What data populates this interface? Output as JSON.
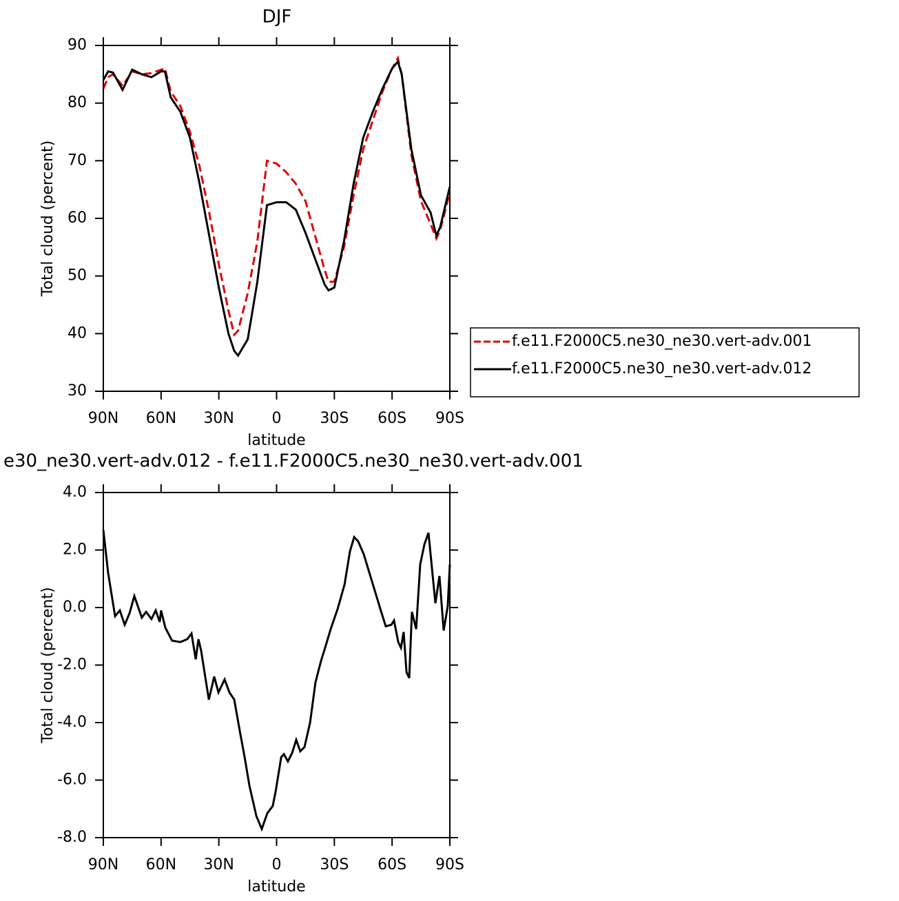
{
  "chart_data": [
    {
      "type": "line",
      "title": "DJF",
      "ylabel": "Total cloud (percent)",
      "xlabel": "latitude",
      "xlim": [
        90,
        -90
      ],
      "xticks": [
        {
          "value": 90,
          "label": "90N"
        },
        {
          "value": 60,
          "label": "60N"
        },
        {
          "value": 30,
          "label": "30N"
        },
        0,
        {
          "value": -30,
          "label": "30S"
        },
        {
          "value": -60,
          "label": "60S"
        },
        {
          "value": -90,
          "label": "90S"
        }
      ],
      "ylim": [
        30,
        90
      ],
      "yticks": [
        30,
        40,
        50,
        60,
        70,
        80,
        90
      ],
      "legend": "right",
      "x": [
        90,
        87.5,
        85,
        80,
        75,
        70,
        65,
        60,
        58,
        55,
        50,
        45,
        40,
        35,
        30,
        25,
        22,
        20,
        15,
        10,
        5,
        0,
        -5,
        -10,
        -15,
        -20,
        -25,
        -27,
        -30,
        -35,
        -40,
        -45,
        -50,
        -55,
        -60,
        -63,
        -65,
        -70,
        -75,
        -80,
        -83,
        -85,
        -90
      ],
      "series": [
        {
          "name": "f.e11.F2000C5.ne30_ne30.vert-adv.001",
          "color": "#e00000",
          "linestyle": "dashed",
          "values": [
            82.5,
            84.5,
            85,
            83,
            85.5,
            85,
            85.2,
            85.8,
            86,
            82,
            79.5,
            75,
            69,
            61,
            52,
            44,
            39.8,
            40.5,
            47,
            56,
            70,
            69.5,
            68,
            66,
            63,
            57,
            51,
            49,
            49,
            55,
            64,
            72,
            77,
            82,
            86,
            87.8,
            85,
            71,
            63,
            59,
            56.5,
            58,
            64.5
          ]
        },
        {
          "name": "f.e11.F2000C5.ne30_ne30.vert-adv.012",
          "color": "#000000",
          "linestyle": "solid",
          "values": [
            84,
            85.5,
            85.3,
            82.3,
            85.8,
            85,
            84.5,
            85.5,
            85.5,
            81,
            78.5,
            74,
            66,
            57,
            48,
            40,
            37,
            36.2,
            39,
            49,
            62.3,
            62.8,
            62.8,
            61.5,
            57.5,
            53,
            48.5,
            47.5,
            48,
            56,
            66,
            74,
            78.5,
            82.5,
            86,
            87.2,
            85,
            72,
            64,
            61,
            57,
            58.5,
            65.5
          ]
        }
      ]
    },
    {
      "type": "line",
      "title": "e30_ne30.vert-adv.012 - f.e11.F2000C5.ne30_ne30.vert-adv.001",
      "ylabel": "Total cloud (percent)",
      "xlabel": "latitude",
      "xlim": [
        90,
        -90
      ],
      "xticks": [
        {
          "value": 90,
          "label": "90N"
        },
        {
          "value": 60,
          "label": "60N"
        },
        {
          "value": 30,
          "label": "30N"
        },
        0,
        {
          "value": -30,
          "label": "30S"
        },
        {
          "value": -60,
          "label": "60S"
        },
        {
          "value": -90,
          "label": "90S"
        }
      ],
      "ylim": [
        -8,
        4
      ],
      "yticks": [
        {
          "value": -8,
          "label": "-8.0"
        },
        {
          "value": -6,
          "label": "-6.0"
        },
        {
          "value": -4,
          "label": "-4.0"
        },
        {
          "value": -2,
          "label": "-2.0"
        },
        {
          "value": 0,
          "label": "0.0"
        },
        {
          "value": 2,
          "label": "2.0"
        },
        {
          "value": 4,
          "label": "4.0"
        }
      ],
      "x": [
        90,
        87.5,
        83.9,
        81.4,
        78.9,
        76.4,
        73.9,
        70,
        67.8,
        65,
        62.8,
        60.7,
        60,
        57.8,
        54.3,
        50,
        46.4,
        44.2,
        42,
        40.6,
        39.2,
        35.2,
        32.4,
        30.2,
        27,
        24.5,
        22,
        19.1,
        16.6,
        14.1,
        10.5,
        7.7,
        4.8,
        2,
        0.5,
        -2.4,
        -3.8,
        -5.9,
        -8.1,
        -10.2,
        -12.3,
        -14.5,
        -17.4,
        -20.2,
        -23.1,
        -25.2,
        -28.1,
        -31.7,
        -35.3,
        -38.1,
        -40.3,
        -42.4,
        -45.3,
        -49.6,
        -53.9,
        -56.7,
        -59.6,
        -61,
        -63.2,
        -64.6,
        -66,
        -67.5,
        -68.9,
        -70.3,
        -72.5,
        -74.6,
        -76.8,
        -78.9,
        -81.1,
        -82.5,
        -84.6,
        -86.8,
        -88.9,
        -90
      ],
      "series": [
        {
          "color": "#000000",
          "linestyle": "solid",
          "values": [
            2.7,
            1.2,
            -0.3,
            -0.1,
            -0.6,
            -0.2,
            0.4,
            -0.35,
            -0.15,
            -0.4,
            -0.1,
            -0.5,
            -0.1,
            -0.7,
            -1.15,
            -1.2,
            -1.1,
            -0.9,
            -1.8,
            -1.1,
            -1.5,
            -3.2,
            -2.4,
            -2.95,
            -2.5,
            -2.95,
            -3.2,
            -4.3,
            -5.2,
            -6.2,
            -7.25,
            -7.7,
            -7.15,
            -6.9,
            -6.4,
            -5.2,
            -5.1,
            -5.35,
            -5.05,
            -4.6,
            -5.0,
            -4.85,
            -4.0,
            -2.6,
            -1.85,
            -1.4,
            -0.75,
            -0.05,
            0.8,
            1.95,
            2.45,
            2.3,
            1.85,
            0.9,
            -0.05,
            -0.65,
            -0.6,
            -0.45,
            -1.2,
            -1.4,
            -0.85,
            -2.25,
            -2.45,
            -0.15,
            -0.75,
            1.5,
            2.2,
            2.6,
            1.1,
            0.15,
            1.1,
            -0.8,
            0.05,
            1.5
          ]
        }
      ]
    }
  ]
}
